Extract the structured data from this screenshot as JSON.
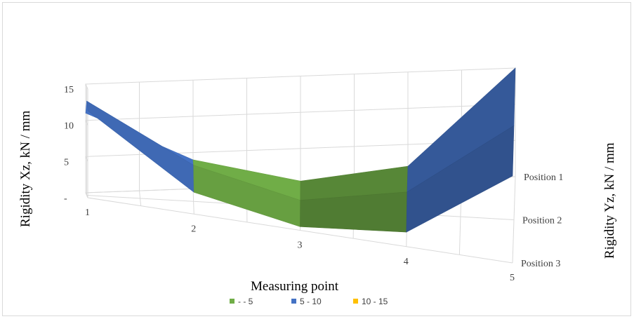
{
  "chart_data": {
    "type": "surface",
    "xlabel": "Measuring point",
    "ylabel": "Rigidity  Xz, kN / mm",
    "zlabel": "Rigidity  Yz, kN / mm",
    "x_categories": [
      "1",
      "2",
      "3",
      "4",
      "5"
    ],
    "series": [
      {
        "name": "Position 1",
        "values": [
          11,
          4,
          0.5,
          2,
          15
        ]
      },
      {
        "name": "Position 2",
        "values": [
          13,
          5,
          1,
          3,
          13
        ]
      },
      {
        "name": "Position 3",
        "values": [
          12,
          3,
          0.5,
          2,
          12
        ]
      }
    ],
    "z_ticks": [
      "-",
      "5",
      "10",
      "15"
    ],
    "zlim": [
      0,
      15
    ],
    "legend": [
      {
        "label": "-    - 5",
        "color": "#70ad47"
      },
      {
        "label": "5  - 10",
        "color": "#4472c4"
      },
      {
        "label": "10  - 15",
        "color": "#ffc000"
      }
    ],
    "legend_position": "bottom",
    "grid": true
  }
}
